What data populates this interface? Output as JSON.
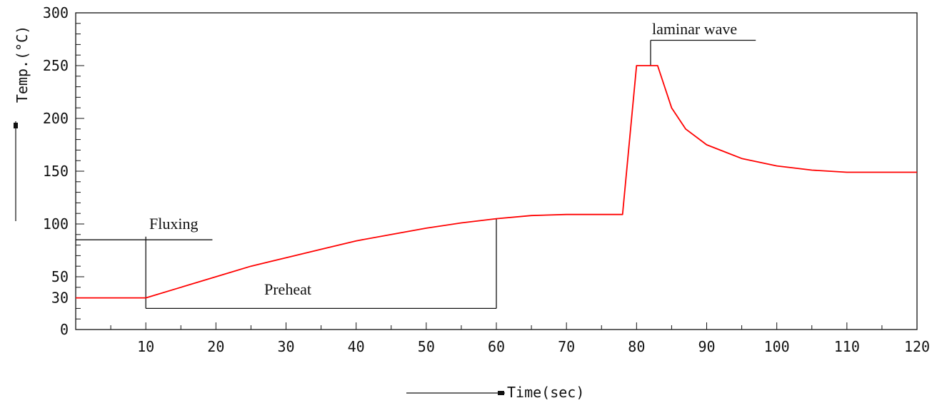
{
  "chart_data": {
    "type": "line",
    "title": "",
    "xlabel": "Time(sec)",
    "ylabel": "Temp.(°C)",
    "xlim": [
      0,
      120
    ],
    "ylim": [
      0,
      300
    ],
    "x_ticks": [
      "10",
      "20",
      "30",
      "40",
      "50",
      "60",
      "70",
      "80",
      "90",
      "100",
      "110",
      "120"
    ],
    "y_ticks": [
      "0",
      "30",
      "50",
      "100",
      "150",
      "200",
      "250",
      "300"
    ],
    "grid": false,
    "line_color": "#ff0000",
    "series": [
      {
        "x": [
          0,
          10,
          15,
          20,
          25,
          30,
          35,
          40,
          45,
          50,
          55,
          60,
          65,
          70,
          75,
          78,
          80,
          81,
          83,
          84,
          85,
          87,
          90,
          95,
          100,
          105,
          110,
          120
        ],
        "y": [
          30,
          30,
          40,
          50,
          60,
          68,
          76,
          84,
          90,
          96,
          101,
          105,
          108,
          109,
          109,
          109,
          250,
          250,
          250,
          230,
          210,
          190,
          175,
          162,
          155,
          151,
          149,
          149
        ]
      }
    ],
    "annotations": [
      {
        "text": "Fluxing",
        "x": 10,
        "y": 85
      },
      {
        "text": "Preheat",
        "x": 35,
        "y": 22
      },
      {
        "text": "laminar wave",
        "x": 82,
        "y": 258
      }
    ]
  }
}
